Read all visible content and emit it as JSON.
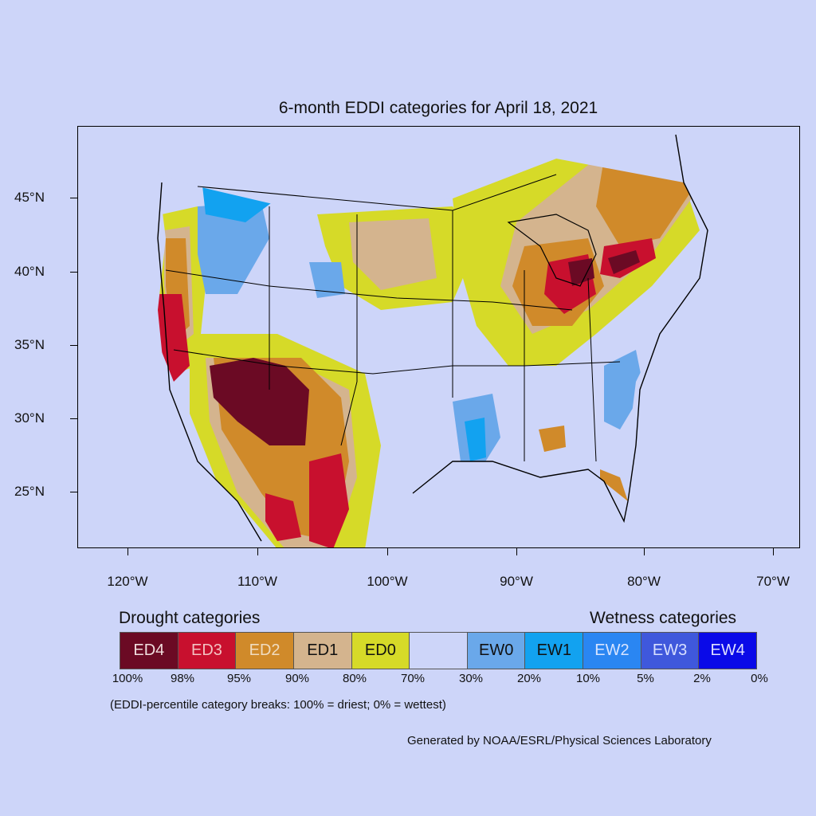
{
  "map": {
    "title": "6-month EDDI categories for April 18, 2021",
    "lat_labels": [
      "45°N",
      "40°N",
      "35°N",
      "30°N",
      "25°N"
    ],
    "lon_labels": [
      "120°W",
      "110°W",
      "100°W",
      "90°W",
      "80°W",
      "70°W"
    ],
    "background_color": "#cdd5f9"
  },
  "legend": {
    "drought_heading": "Drought categories",
    "wetness_heading": "Wetness categories",
    "categories": [
      {
        "label": "ED4",
        "color": "#6b0a24",
        "text_color": "#f0dede"
      },
      {
        "label": "ED3",
        "color": "#c8102e",
        "text_color": "#f3c2c2"
      },
      {
        "label": "ED2",
        "color": "#d08a2a",
        "text_color": "#f0dcc0"
      },
      {
        "label": "ED1",
        "color": "#d4b48e",
        "text_color": "#111111"
      },
      {
        "label": "ED0",
        "color": "#d6da28",
        "text_color": "#111111"
      },
      {
        "label": "",
        "color": "#cdd5f9",
        "text_color": "#111111"
      },
      {
        "label": "EW0",
        "color": "#6aa8ea",
        "text_color": "#111111"
      },
      {
        "label": "EW1",
        "color": "#12a2f0",
        "text_color": "#111111"
      },
      {
        "label": "EW2",
        "color": "#2a86f2",
        "text_color": "#d8e4ff"
      },
      {
        "label": "EW3",
        "color": "#3f58dc",
        "text_color": "#d8e0ff"
      },
      {
        "label": "EW4",
        "color": "#0a0ae8",
        "text_color": "#dfe0ff"
      }
    ],
    "percentiles": [
      "100%",
      "98%",
      "95%",
      "90%",
      "80%",
      "70%",
      "30%",
      "20%",
      "10%",
      "5%",
      "2%",
      "0%"
    ],
    "note": "(EDDI-percentile category breaks: 100% = driest; 0% = wettest)"
  },
  "credit": "Generated by NOAA/ESRL/Physical Sciences Laboratory"
}
